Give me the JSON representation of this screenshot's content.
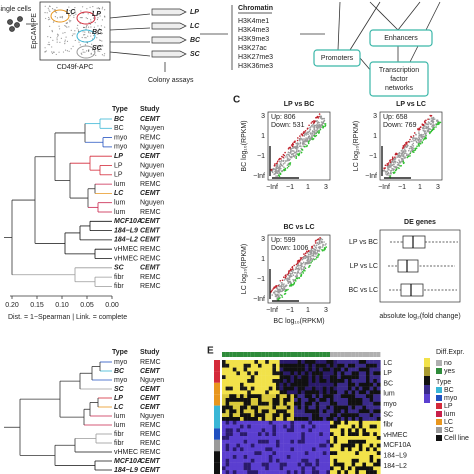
{
  "panelA": {
    "single_cells": "single cells",
    "facs_y": "EpCAM-PE",
    "facs_x": "CD49f-APC",
    "gates": [
      {
        "label": "LC",
        "color": "#e8961e"
      },
      {
        "label": "LP",
        "color": "#d42a3a"
      },
      {
        "label": "BC",
        "color": "#3ab6d6"
      },
      {
        "label": "SC",
        "color": "#9a9a9a"
      }
    ],
    "tubes": [
      "LP",
      "LC",
      "BC",
      "SC"
    ],
    "colony": "Colony assays",
    "chromatin": {
      "title": "Chromatin",
      "marks": [
        "H3K4me1",
        "H3K4me3",
        "H3K9me3",
        "H3K27ac",
        "H3K27me3",
        "H3K36me3"
      ]
    },
    "network": {
      "promoters": "Promoters",
      "enhancers": "Enhancers",
      "tf": [
        "Transcription",
        "factor",
        "networks"
      ]
    }
  },
  "panelB": {
    "header": [
      "Type",
      "Study"
    ],
    "rows": [
      {
        "type": "BC",
        "study": "CEMT",
        "color": "#3ab6d6",
        "emph": true
      },
      {
        "type": "BC",
        "study": "Nguyen",
        "color": "#3ab6d6",
        "emph": false
      },
      {
        "type": "myo",
        "study": "REMC",
        "color": "#2050c0",
        "emph": false
      },
      {
        "type": "myo",
        "study": "Nguyen",
        "color": "#2050c0",
        "emph": false
      },
      {
        "type": "LP",
        "study": "CEMT",
        "color": "#d42a3a",
        "emph": true
      },
      {
        "type": "LP",
        "study": "Nguyen",
        "color": "#d42a3a",
        "emph": false
      },
      {
        "type": "LP",
        "study": "Nguyen",
        "color": "#d42a3a",
        "emph": false
      },
      {
        "type": "lum",
        "study": "REMC",
        "color": "#c8204a",
        "emph": false
      },
      {
        "type": "LC",
        "study": "CEMT",
        "color": "#e8961e",
        "emph": true
      },
      {
        "type": "lum",
        "study": "Nguyen",
        "color": "#c8204a",
        "emph": false
      },
      {
        "type": "lum",
        "study": "REMC",
        "color": "#c8204a",
        "emph": false
      },
      {
        "type": "MCF10A",
        "study": "CEMT",
        "color": "#111111",
        "emph": true
      },
      {
        "type": "184−L9",
        "study": "CEMT",
        "color": "#111111",
        "emph": true
      },
      {
        "type": "184−L2",
        "study": "CEMT",
        "color": "#111111",
        "emph": true
      },
      {
        "type": "vHMEC",
        "study": "REMC",
        "color": "#111111",
        "emph": false
      },
      {
        "type": "vHMEC",
        "study": "REMC",
        "color": "#111111",
        "emph": false
      },
      {
        "type": "SC",
        "study": "CEMT",
        "color": "#9a9a9a",
        "emph": true
      },
      {
        "type": "fibr",
        "study": "REMC",
        "color": "#9a9a9a",
        "emph": false
      },
      {
        "type": "fibr",
        "study": "REMC",
        "color": "#9a9a9a",
        "emph": false
      }
    ],
    "axis_ticks": [
      "0.20",
      "0.15",
      "0.10",
      "0.05",
      "0.00"
    ],
    "axis_label": "Dist. = 1−Spearman | Link. = complete"
  },
  "panelC": {
    "label": "C",
    "plots": [
      {
        "title": "LP vs BC",
        "up": "Up: 806",
        "down": "Down: 531",
        "ylabel": "BC log₁₀(RPKM)"
      },
      {
        "title": "LP vs LC",
        "up": "Up: 658",
        "down": "Down: 769",
        "ylabel": "LC log₁₀(RPKM)"
      },
      {
        "title": "BC vs LC",
        "up": "Up: 599",
        "down": "Down: 1006",
        "ylabel": "LC log₁₀(RPKM)",
        "xlabel": "BC log₁₀(RPKM)"
      }
    ],
    "xticks": [
      "−Inf",
      "−1",
      "1",
      "3"
    ],
    "yticks": [
      "3",
      "1",
      "−1",
      "−Inf"
    ],
    "de": {
      "title": "DE genes",
      "categories": [
        "LP vs BC",
        "LP vs LC",
        "BC vs LC"
      ],
      "xlabel": "absolute log₂(fold change)"
    }
  },
  "panelD": {
    "header": [
      "Type",
      "Study"
    ],
    "rows": [
      {
        "type": "myo",
        "study": "REMC",
        "color": "#2050c0",
        "emph": false
      },
      {
        "type": "BC",
        "study": "CEMT",
        "color": "#3ab6d6",
        "emph": true
      },
      {
        "type": "myo",
        "study": "Nguyen",
        "color": "#2050c0",
        "emph": false
      },
      {
        "type": "SC",
        "study": "CEMT",
        "color": "#9a9a9a",
        "emph": true
      },
      {
        "type": "LP",
        "study": "CEMT",
        "color": "#d42a3a",
        "emph": true
      },
      {
        "type": "LC",
        "study": "CEMT",
        "color": "#e8961e",
        "emph": true
      },
      {
        "type": "lum",
        "study": "Nguyen",
        "color": "#c8204a",
        "emph": false
      },
      {
        "type": "lum",
        "study": "REMC",
        "color": "#c8204a",
        "emph": false
      },
      {
        "type": "fibr",
        "study": "REMC",
        "color": "#9a9a9a",
        "emph": false
      },
      {
        "type": "fibr",
        "study": "REMC",
        "color": "#9a9a9a",
        "emph": false
      },
      {
        "type": "vHMEC",
        "study": "REMC",
        "color": "#111111",
        "emph": false
      },
      {
        "type": "MCF10A",
        "study": "CEMT",
        "color": "#111111",
        "emph": true
      },
      {
        "type": "184−L9",
        "study": "CEMT",
        "color": "#111111",
        "emph": true
      }
    ]
  },
  "panelE": {
    "label": "E",
    "row_labels": [
      "LC",
      "LP",
      "BC",
      "lum",
      "myo",
      "SC",
      "fibr",
      "vHMEC",
      "MCF10A",
      "184−L9",
      "184−L2"
    ],
    "legend": {
      "diff": "Diff.Expr.",
      "no": "no",
      "yes": "yes",
      "type": "Type",
      "types": [
        {
          "label": "BC",
          "color": "#3ab6d6"
        },
        {
          "label": "myo",
          "color": "#2050c0"
        },
        {
          "label": "LP",
          "color": "#d42a3a"
        },
        {
          "label": "lum",
          "color": "#c8204a"
        },
        {
          "label": "LC",
          "color": "#e8961e"
        },
        {
          "label": "SC",
          "color": "#9a9a9a"
        },
        {
          "label": "Cell line",
          "color": "#111111"
        }
      ]
    }
  }
}
